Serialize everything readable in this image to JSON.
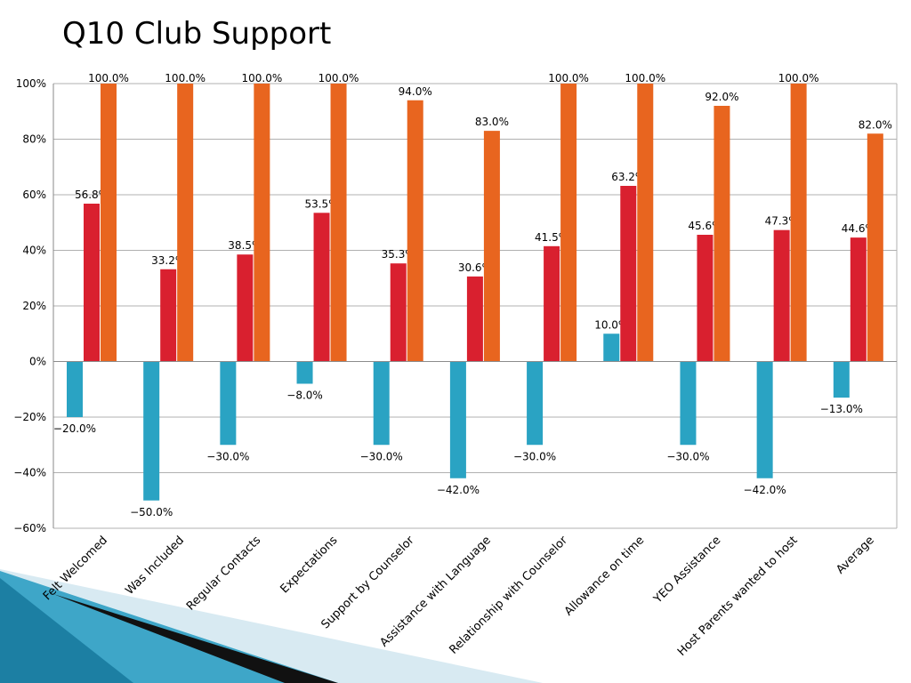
{
  "slide": {
    "title": "Q10 Club Support"
  },
  "chart_data": {
    "type": "bar",
    "categories": [
      "Felt Welcomed",
      "Was Included",
      "Regular Contacts",
      "Expectations",
      "Support by Counselor",
      "Assistance with Language",
      "Relationship with Counselor",
      "Allowance on time",
      "YEO Assistance",
      "Host Parents wanted to host",
      "Average"
    ],
    "series": [
      {
        "color": "#2aa3c3",
        "values": [
          -20.0,
          -50.0,
          -30.0,
          -8.0,
          -30.0,
          -42.0,
          -30.0,
          10.0,
          -30.0,
          -42.0,
          -13.0
        ]
      },
      {
        "color": "#d9202f",
        "values": [
          56.8,
          33.2,
          38.5,
          53.5,
          35.3,
          30.6,
          41.5,
          63.2,
          45.6,
          47.3,
          44.6
        ]
      },
      {
        "color": "#e8651f",
        "values": [
          100.0,
          100.0,
          100.0,
          100.0,
          94.0,
          83.0,
          100.0,
          100.0,
          92.0,
          100.0,
          82.0
        ]
      }
    ],
    "data_labels": [
      [
        "−20.0%",
        "−50.0%",
        "−30.0%",
        "−8.0%",
        "−30.0%",
        "−42.0%",
        "−30.0%",
        "10.0%",
        "−30.0%",
        "−42.0%",
        "−13.0%"
      ],
      [
        "56.8%",
        "33.2%",
        "38.5%",
        "53.5%",
        "35.3%",
        "30.6%",
        "41.5%",
        "63.2%",
        "45.6%",
        "47.3%",
        "44.6%"
      ],
      [
        "100.0%",
        "100.0%",
        "100.0%",
        "100.0%",
        "94.0%",
        "83.0%",
        "100.0%",
        "100.0%",
        "92.0%",
        "100.0%",
        "82.0%"
      ]
    ],
    "ylim": [
      -60,
      100
    ],
    "yticks": [
      100,
      80,
      60,
      40,
      20,
      0,
      -20,
      -40,
      -60
    ],
    "ytick_labels": [
      "100%",
      "80%",
      "60%",
      "40%",
      "20%",
      "0%",
      "−20%",
      "−40%",
      "−60%"
    ],
    "grid": true,
    "legend": "none"
  }
}
